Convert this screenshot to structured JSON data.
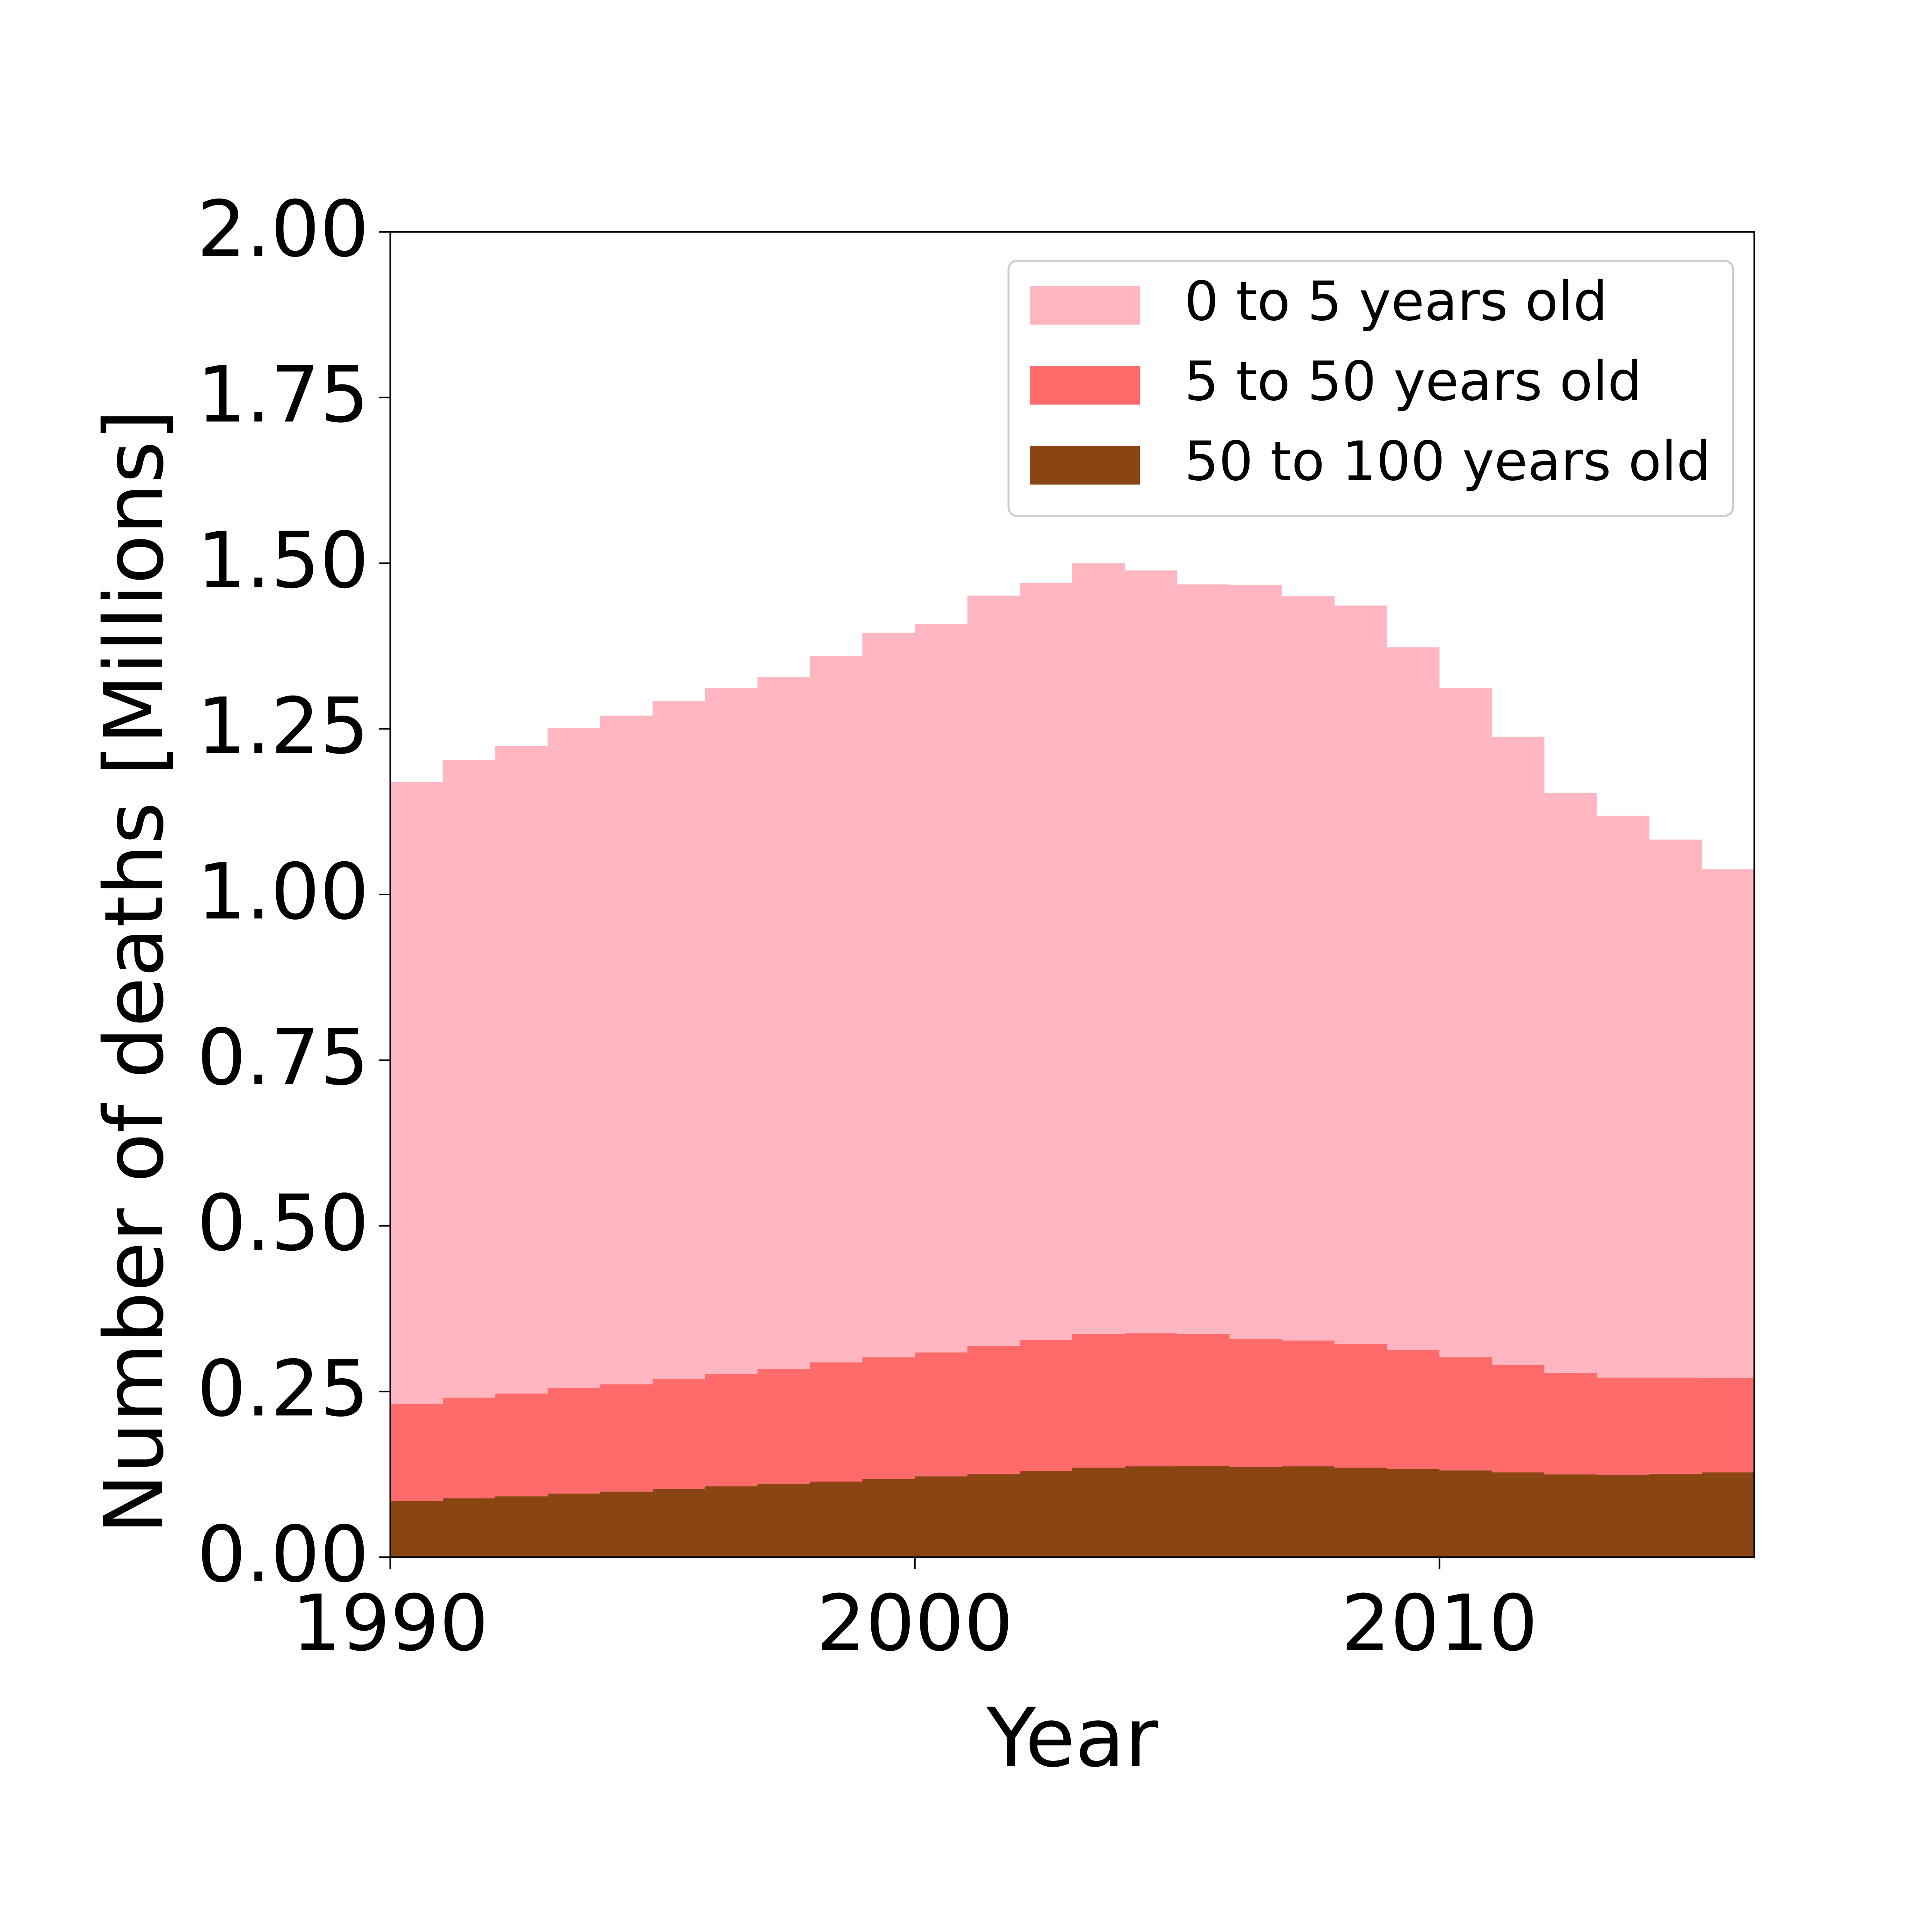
{
  "chart_data": {
    "type": "area",
    "xlabel": "Year",
    "ylabel": "Number of deaths [Millions]",
    "xlim": [
      1990,
      2016
    ],
    "ylim": [
      0,
      2
    ],
    "xticks": [
      1990,
      2000,
      2010
    ],
    "xtick_labels": [
      "1990",
      "2000",
      "2010"
    ],
    "yticks": [
      0,
      0.25,
      0.5,
      0.75,
      1.0,
      1.25,
      1.5,
      1.75,
      2.0
    ],
    "ytick_labels": [
      "0.00",
      "0.25",
      "0.50",
      "0.75",
      "1.00",
      "1.25",
      "1.50",
      "1.75",
      "2.00"
    ],
    "legend_position": "top-right",
    "x": [
      1990,
      1991,
      1992,
      1993,
      1994,
      1995,
      1996,
      1997,
      1998,
      1999,
      2000,
      2001,
      2002,
      2003,
      2004,
      2005,
      2006,
      2007,
      2008,
      2009,
      2010,
      2011,
      2012,
      2013,
      2014,
      2015,
      2016
    ],
    "stacked": true,
    "series": [
      {
        "name": "50 to 100 years old",
        "color": "#8B4513",
        "values": [
          0.085,
          0.089,
          0.092,
          0.096,
          0.099,
          0.103,
          0.107,
          0.111,
          0.114,
          0.118,
          0.122,
          0.126,
          0.13,
          0.135,
          0.137,
          0.138,
          0.136,
          0.137,
          0.135,
          0.133,
          0.131,
          0.128,
          0.125,
          0.124,
          0.126,
          0.128,
          0.13
        ]
      },
      {
        "name": "5 to 50 years old",
        "color": "#FF6B6B",
        "values": [
          0.146,
          0.152,
          0.155,
          0.159,
          0.162,
          0.166,
          0.17,
          0.173,
          0.18,
          0.184,
          0.187,
          0.193,
          0.198,
          0.202,
          0.201,
          0.199,
          0.193,
          0.19,
          0.187,
          0.18,
          0.171,
          0.162,
          0.153,
          0.147,
          0.145,
          0.142,
          0.139
        ]
      },
      {
        "name": "0 to 5 years old",
        "color": "#FFB6C1",
        "values": [
          0.939,
          0.962,
          0.977,
          0.996,
          1.009,
          1.023,
          1.035,
          1.044,
          1.066,
          1.093,
          1.099,
          1.132,
          1.142,
          1.163,
          1.151,
          1.131,
          1.138,
          1.123,
          1.114,
          1.06,
          1.01,
          0.948,
          0.875,
          0.848,
          0.812,
          0.768,
          0.764
        ]
      }
    ]
  }
}
